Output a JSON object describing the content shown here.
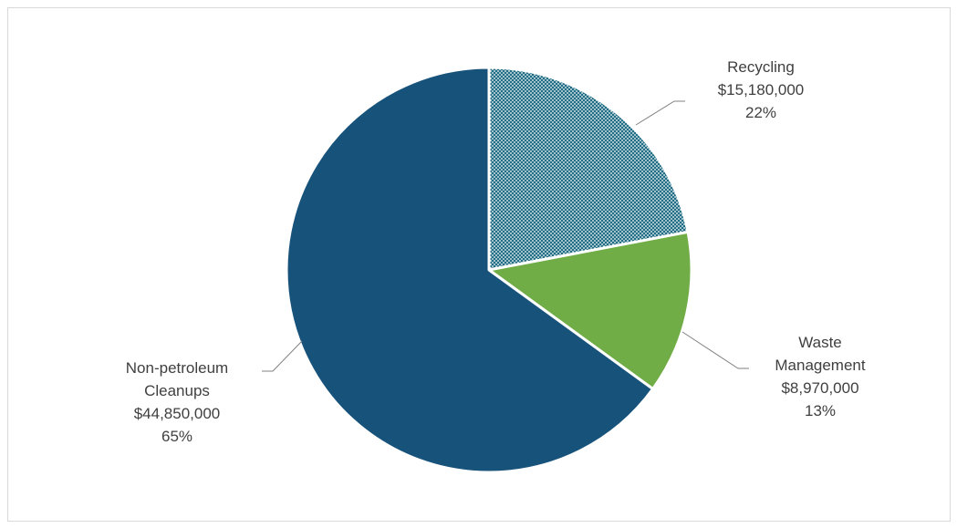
{
  "chart_data": {
    "type": "pie",
    "title": "",
    "slices": [
      {
        "name": "Recycling",
        "lines": [
          "Recycling"
        ],
        "value": 15180000,
        "value_label": "$15,180,000",
        "percent_label": "22%",
        "color": "#1f6e85",
        "pattern": "dotted"
      },
      {
        "name": "Waste Management",
        "lines": [
          "Waste",
          "Management"
        ],
        "value": 8970000,
        "value_label": "$8,970,000",
        "percent_label": "13%",
        "color": "#70ad47",
        "pattern": "solid"
      },
      {
        "name": "Non-petroleum Cleanups",
        "lines": [
          "Non-petroleum",
          "Cleanups"
        ],
        "value": 44850000,
        "value_label": "$44,850,000",
        "percent_label": "65%",
        "color": "#17527b",
        "pattern": "solid"
      }
    ],
    "start_angle_deg": 0,
    "direction": "clockwise",
    "legend": "none",
    "data_labels": "outside-with-leader-lines"
  }
}
